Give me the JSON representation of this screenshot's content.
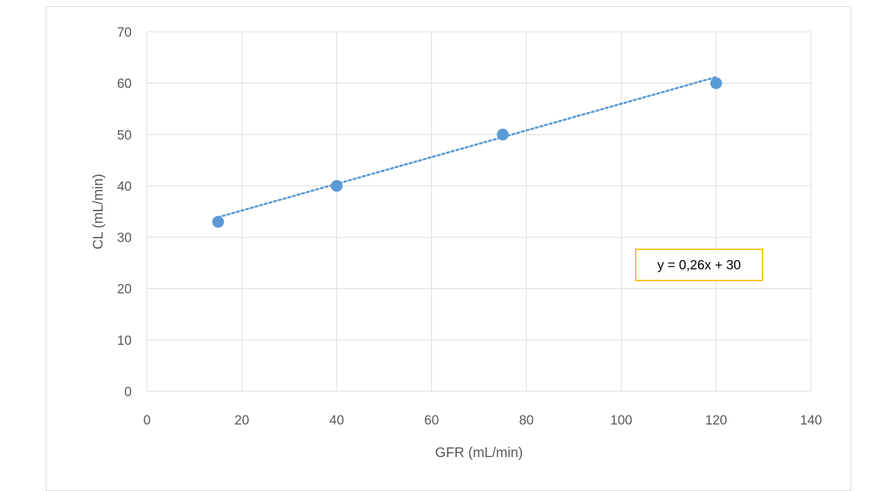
{
  "chart_data": {
    "type": "scatter",
    "series": [
      {
        "x": [
          15,
          40,
          75,
          120
        ],
        "y": [
          33,
          40,
          50,
          60
        ],
        "color": "#5b9bd5"
      }
    ],
    "trendline": {
      "type": "linear",
      "style": "dotted",
      "color": "#5b9bd5",
      "slope": 0.26,
      "intercept": 30,
      "x_range": [
        15,
        120
      ],
      "equation_label": "y = 0,26x + 30",
      "label_border_color": "#ffc000"
    },
    "xlabel": "GFR (mL/min)",
    "ylabel": "CL (mL/min)",
    "xlim": [
      0,
      140
    ],
    "ylim": [
      0,
      70
    ],
    "xticks": [
      0,
      20,
      40,
      60,
      80,
      100,
      120,
      140
    ],
    "yticks": [
      0,
      10,
      20,
      30,
      40,
      50,
      60,
      70
    ],
    "grid": true,
    "grid_color": "#d9d9d9"
  }
}
